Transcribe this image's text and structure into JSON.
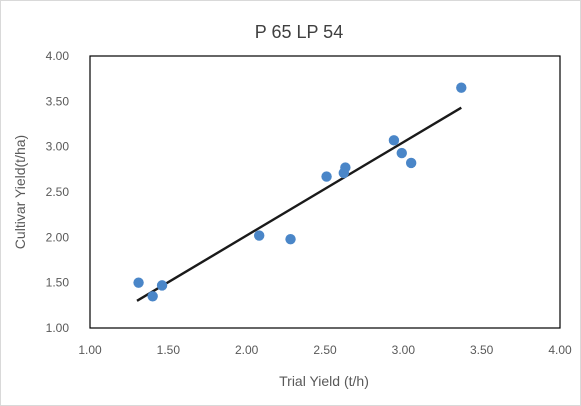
{
  "chart_data": {
    "type": "scatter",
    "title": "P 65 LP 54",
    "xlabel": "Trial Yield (t/h)",
    "ylabel": "Cultivar Yield(t/ha)",
    "xlim": [
      1.0,
      4.0
    ],
    "ylim": [
      1.0,
      4.0
    ],
    "x_ticks": [
      "1.00",
      "1.50",
      "2.00",
      "2.50",
      "3.00",
      "3.50",
      "4.00"
    ],
    "y_ticks": [
      "1.00",
      "1.50",
      "2.00",
      "2.50",
      "3.00",
      "3.50",
      "4.00"
    ],
    "grid": false,
    "legend": "none",
    "points": [
      {
        "x": 1.31,
        "y": 1.5
      },
      {
        "x": 1.4,
        "y": 1.35
      },
      {
        "x": 1.46,
        "y": 1.47
      },
      {
        "x": 2.08,
        "y": 2.02
      },
      {
        "x": 2.28,
        "y": 1.98
      },
      {
        "x": 2.51,
        "y": 2.67
      },
      {
        "x": 2.62,
        "y": 2.71
      },
      {
        "x": 2.63,
        "y": 2.77
      },
      {
        "x": 2.94,
        "y": 3.07
      },
      {
        "x": 2.99,
        "y": 2.93
      },
      {
        "x": 3.05,
        "y": 2.82
      },
      {
        "x": 3.37,
        "y": 3.65
      }
    ],
    "trendline": {
      "x": [
        1.3,
        3.37
      ],
      "y": [
        1.3,
        3.43
      ]
    },
    "colors": {
      "point": "#4a86c8",
      "trendline": "#1a1a1a",
      "axis": "#000000"
    }
  }
}
